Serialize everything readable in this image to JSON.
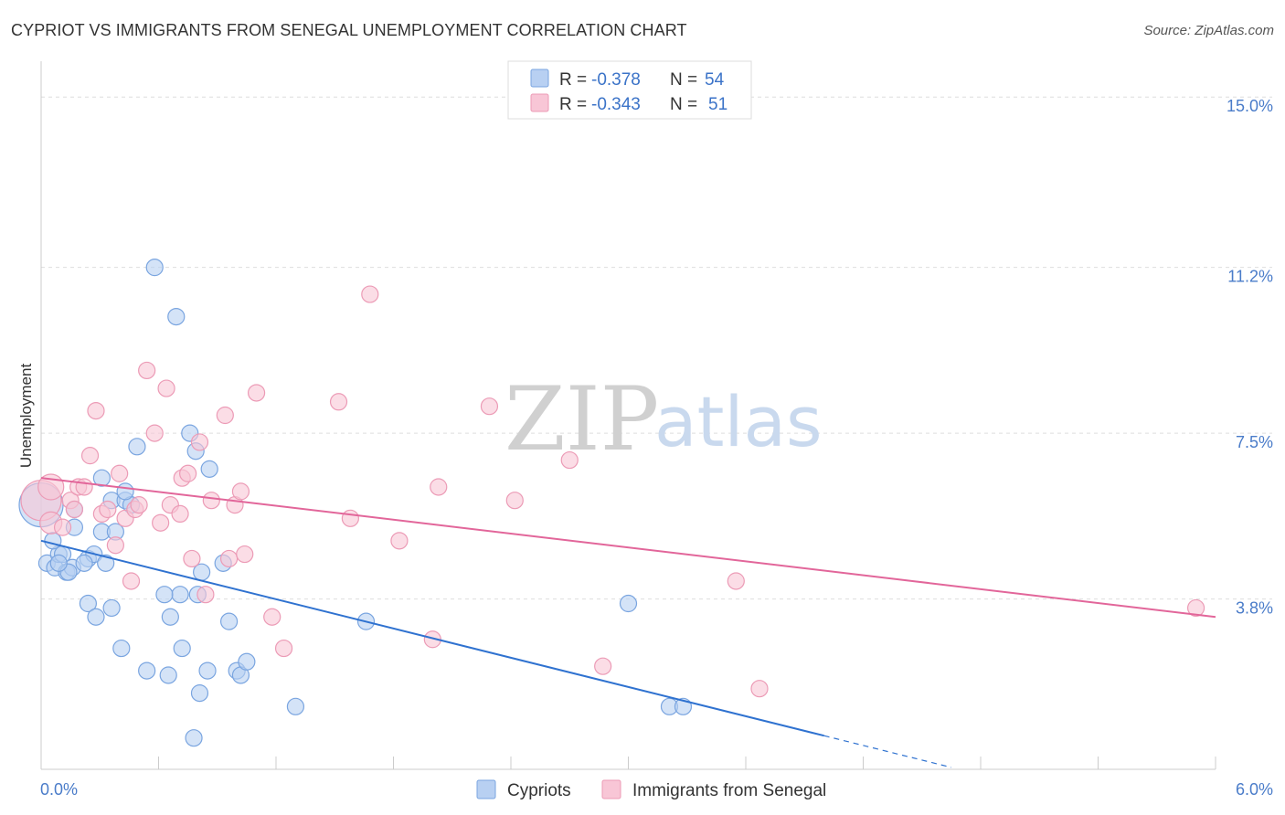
{
  "header": {
    "title": "CYPRIOT VS IMMIGRANTS FROM SENEGAL UNEMPLOYMENT CORRELATION CHART",
    "source": "Source: ZipAtlas.com"
  },
  "watermark": {
    "zip": "ZIP",
    "atlas": "atlas"
  },
  "colors": {
    "blue_fill": "#b8d0f2",
    "blue_stroke": "#7aa5e0",
    "blue_line": "#2f72d0",
    "pink_fill": "#f8c6d6",
    "pink_stroke": "#ec9bb6",
    "pink_line": "#e2669a",
    "grid": "#dddddd",
    "tick_text": "#4a7cc9"
  },
  "chart_data": {
    "type": "scatter",
    "title": "CYPRIOT VS IMMIGRANTS FROM SENEGAL UNEMPLOYMENT CORRELATION CHART",
    "xlabel": "",
    "ylabel": "Unemployment",
    "xlim": [
      0,
      6.0
    ],
    "ylim": [
      0,
      15.8
    ],
    "x_tick_labels": [
      "0.0%",
      "6.0%"
    ],
    "y_ticks": [
      {
        "value": 3.8,
        "label": "3.8%"
      },
      {
        "value": 7.5,
        "label": "7.5%"
      },
      {
        "value": 11.2,
        "label": "11.2%"
      },
      {
        "value": 15.0,
        "label": "15.0%"
      }
    ],
    "grid": true,
    "legend": {
      "placement": "top-center",
      "entries": [
        {
          "r_label": "R =",
          "r_value": "-0.378",
          "n_label": "N =",
          "n_value": "54"
        },
        {
          "r_label": "R =",
          "r_value": "-0.343",
          "n_label": "N =",
          "n_value": "51"
        }
      ]
    },
    "series": [
      {
        "name": "Cypriots",
        "color": "#b8d0f2",
        "trend": {
          "x0": 0.0,
          "y0": 5.1,
          "x1": 4.0,
          "y1": 0.75,
          "dash_to_x": 4.65
        },
        "points": [
          [
            0.0,
            5.9,
            24
          ],
          [
            0.03,
            4.6,
            9
          ],
          [
            0.07,
            4.5,
            9
          ],
          [
            0.09,
            4.8,
            9
          ],
          [
            0.13,
            4.4,
            9
          ],
          [
            0.16,
            4.5,
            9
          ],
          [
            0.06,
            5.1,
            9
          ],
          [
            0.11,
            4.8,
            9
          ],
          [
            0.14,
            4.4,
            9
          ],
          [
            0.17,
            5.8,
            9
          ],
          [
            0.17,
            5.4,
            9
          ],
          [
            0.24,
            4.7,
            9
          ],
          [
            0.27,
            4.8,
            9
          ],
          [
            0.33,
            4.6,
            9
          ],
          [
            0.31,
            5.3,
            9
          ],
          [
            0.38,
            5.3,
            9
          ],
          [
            0.36,
            6.0,
            9
          ],
          [
            0.43,
            6.0,
            9
          ],
          [
            0.46,
            5.9,
            9
          ],
          [
            0.43,
            6.2,
            9
          ],
          [
            0.31,
            6.5,
            9
          ],
          [
            0.49,
            7.2,
            9
          ],
          [
            0.58,
            11.2,
            9
          ],
          [
            0.69,
            10.1,
            9
          ],
          [
            0.76,
            7.5,
            9
          ],
          [
            0.79,
            7.1,
            9
          ],
          [
            0.86,
            6.7,
            9
          ],
          [
            0.93,
            4.6,
            9
          ],
          [
            0.82,
            4.4,
            9
          ],
          [
            0.71,
            3.9,
            9
          ],
          [
            0.8,
            3.9,
            9
          ],
          [
            0.63,
            3.9,
            9
          ],
          [
            0.66,
            3.4,
            9
          ],
          [
            0.24,
            3.7,
            9
          ],
          [
            0.28,
            3.4,
            9
          ],
          [
            0.36,
            3.6,
            9
          ],
          [
            0.41,
            2.7,
            9
          ],
          [
            0.54,
            2.2,
            9
          ],
          [
            0.65,
            2.1,
            9
          ],
          [
            0.72,
            2.7,
            9
          ],
          [
            0.85,
            2.2,
            9
          ],
          [
            0.96,
            3.3,
            9
          ],
          [
            1.0,
            2.2,
            9
          ],
          [
            1.02,
            2.1,
            9
          ],
          [
            1.05,
            2.4,
            9
          ],
          [
            0.81,
            1.7,
            9
          ],
          [
            0.78,
            0.7,
            9
          ],
          [
            1.3,
            1.4,
            9
          ],
          [
            1.66,
            3.3,
            9
          ],
          [
            3.0,
            3.7,
            9
          ],
          [
            3.21,
            1.4,
            9
          ],
          [
            3.28,
            1.4,
            9
          ],
          [
            0.22,
            4.6,
            9
          ],
          [
            0.09,
            4.6,
            9
          ]
        ]
      },
      {
        "name": "Immigrants from Senegal",
        "color": "#f8c6d6",
        "trend": {
          "x0": 0.0,
          "y0": 6.5,
          "x1": 6.0,
          "y1": 3.4
        },
        "points": [
          [
            0.0,
            6.0,
            22
          ],
          [
            0.05,
            6.3,
            14
          ],
          [
            0.05,
            5.5,
            12
          ],
          [
            0.11,
            5.4,
            9
          ],
          [
            0.15,
            6.0,
            9
          ],
          [
            0.19,
            6.3,
            9
          ],
          [
            0.17,
            5.8,
            9
          ],
          [
            0.25,
            7.0,
            9
          ],
          [
            0.28,
            8.0,
            9
          ],
          [
            0.31,
            5.7,
            9
          ],
          [
            0.34,
            5.8,
            9
          ],
          [
            0.38,
            5.0,
            9
          ],
          [
            0.4,
            6.6,
            9
          ],
          [
            0.43,
            5.6,
            9
          ],
          [
            0.48,
            5.8,
            9
          ],
          [
            0.5,
            5.9,
            9
          ],
          [
            0.46,
            4.2,
            9
          ],
          [
            0.54,
            8.9,
            9
          ],
          [
            0.58,
            7.5,
            9
          ],
          [
            0.61,
            5.5,
            9
          ],
          [
            0.64,
            8.5,
            9
          ],
          [
            0.66,
            5.9,
            9
          ],
          [
            0.71,
            5.7,
            9
          ],
          [
            0.72,
            6.5,
            9
          ],
          [
            0.75,
            6.6,
            9
          ],
          [
            0.77,
            4.7,
            9
          ],
          [
            0.81,
            7.3,
            9
          ],
          [
            0.84,
            3.9,
            9
          ],
          [
            0.87,
            6.0,
            9
          ],
          [
            0.94,
            7.9,
            9
          ],
          [
            0.96,
            4.7,
            9
          ],
          [
            0.99,
            5.9,
            9
          ],
          [
            1.02,
            6.2,
            9
          ],
          [
            1.04,
            4.8,
            9
          ],
          [
            1.1,
            8.4,
            9
          ],
          [
            1.18,
            3.4,
            9
          ],
          [
            1.24,
            2.7,
            9
          ],
          [
            1.52,
            8.2,
            9
          ],
          [
            1.58,
            5.6,
            9
          ],
          [
            1.68,
            10.6,
            9
          ],
          [
            1.83,
            5.1,
            9
          ],
          [
            2.0,
            2.9,
            9
          ],
          [
            2.03,
            6.3,
            9
          ],
          [
            2.29,
            8.1,
            9
          ],
          [
            2.42,
            6.0,
            9
          ],
          [
            2.7,
            6.9,
            9
          ],
          [
            2.87,
            2.3,
            9
          ],
          [
            3.55,
            4.2,
            9
          ],
          [
            3.67,
            1.8,
            9
          ],
          [
            5.9,
            3.6,
            9
          ],
          [
            0.22,
            6.3,
            9
          ]
        ]
      }
    ]
  },
  "legend_bottom": [
    {
      "label": "Cypriots"
    },
    {
      "label": "Immigrants from Senegal"
    }
  ]
}
